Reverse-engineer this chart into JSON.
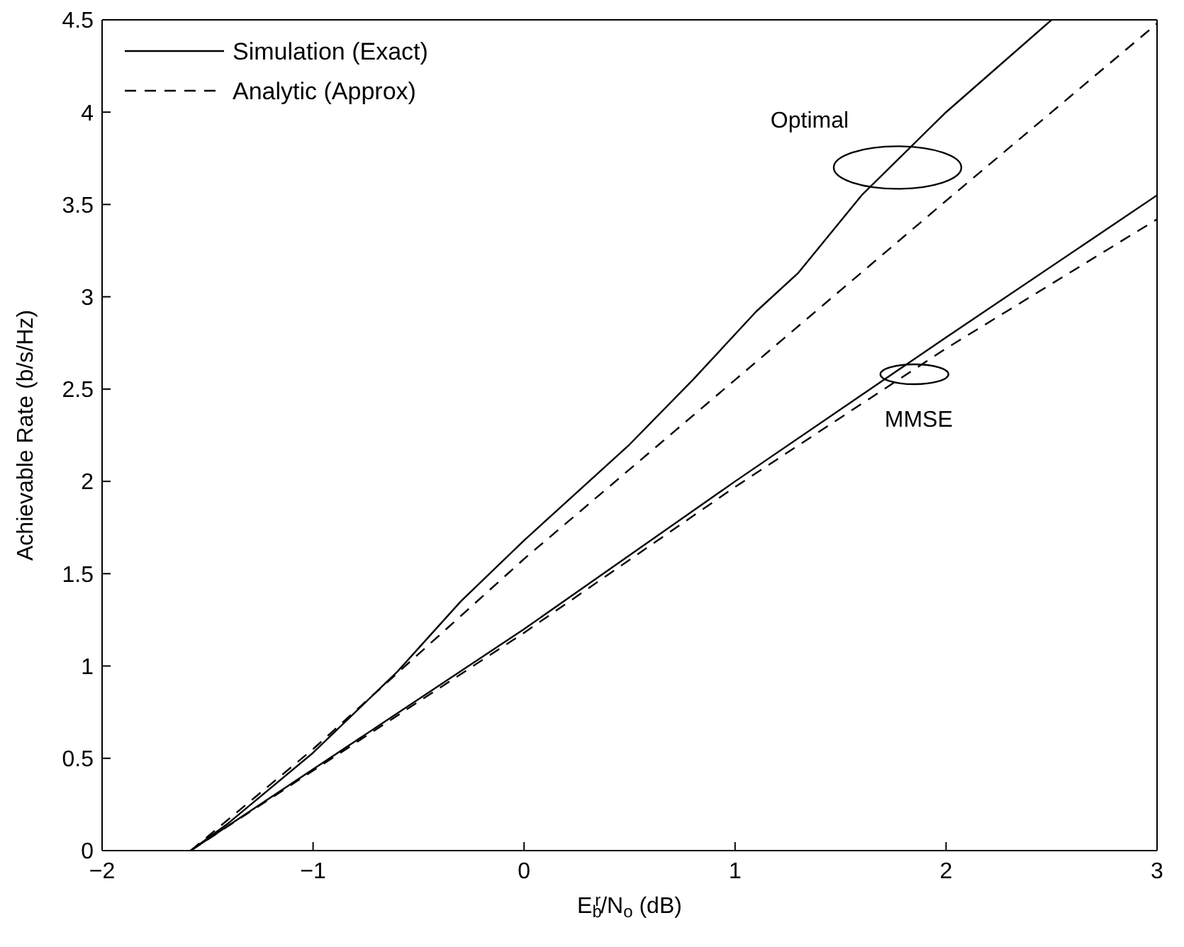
{
  "chart_data": {
    "type": "line",
    "xlabel": "E$_{b}$$^{r}$/N$_{o}$ (dB)",
    "ylabel": "Achievable Rate (b/s/Hz)",
    "xlim": [
      -2,
      3
    ],
    "xticks": [
      {
        "value": -2,
        "label": "−2"
      },
      {
        "value": -1,
        "label": "−1"
      },
      0,
      1,
      2,
      3
    ],
    "ylim": [
      0,
      4.5
    ],
    "yticks": [
      0,
      0.5,
      1,
      1.5,
      2,
      2.5,
      3,
      3.5,
      4,
      4.5
    ],
    "grid": false,
    "legend": "top left",
    "marker": "none",
    "series": [
      {
        "name": "Simulation (Exact)",
        "color": "#000000",
        "line_style": "solid",
        "x": [
          -1.58,
          -1.4,
          -1,
          -0.6,
          -0.3,
          0,
          0.5,
          0.8,
          1.1,
          1.3,
          1.6,
          2,
          2.5
        ],
        "values": [
          0,
          0.15,
          0.53,
          0.97,
          1.35,
          1.68,
          2.2,
          2.55,
          2.92,
          3.13,
          3.55,
          4.0,
          4.5
        ]
      },
      {
        "name": "Analytic (Approx)",
        "color": "#000000",
        "line_style": "dashed",
        "x": [
          -1.58,
          -1,
          0,
          1,
          2,
          3
        ],
        "values": [
          0,
          0.55,
          1.58,
          2.55,
          3.52,
          4.48
        ]
      },
      {
        "color": "#000000",
        "line_style": "solid",
        "x": [
          -1.58,
          0,
          1,
          2,
          3
        ],
        "values": [
          0,
          1.2,
          2.0,
          2.78,
          3.55
        ]
      },
      {
        "color": "#000000",
        "line_style": "dashed",
        "x": [
          -1.58,
          0,
          1,
          2,
          3
        ],
        "values": [
          0,
          1.18,
          1.97,
          2.72,
          3.42
        ]
      }
    ],
    "annotations": [
      {
        "text": "Optimal",
        "x": 1.77,
        "y": 3.7
      },
      {
        "text": "MMSE",
        "x": 1.85,
        "y": 2.58
      }
    ]
  }
}
